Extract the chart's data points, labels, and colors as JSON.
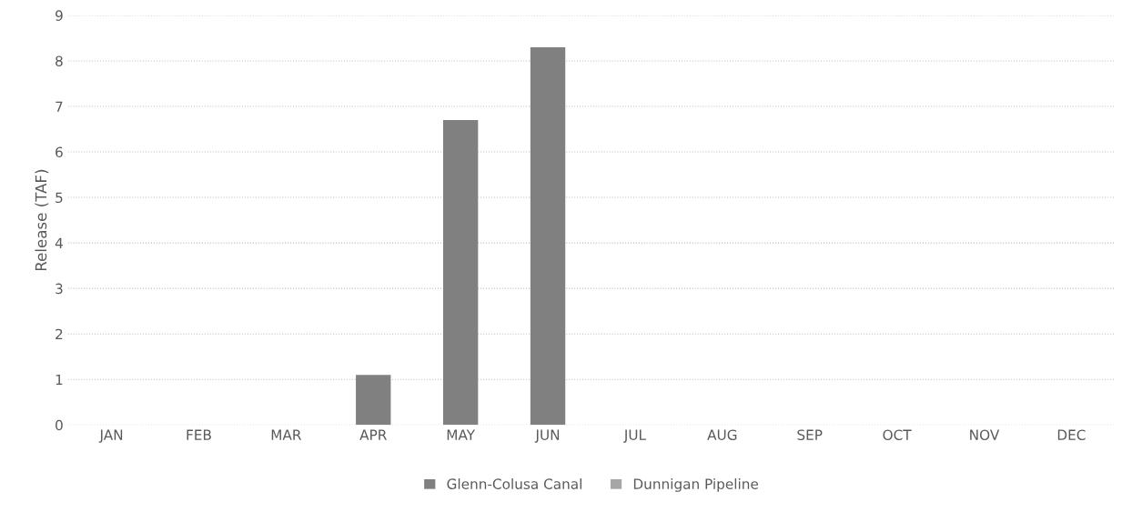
{
  "chart_data": {
    "type": "bar",
    "ylabel": "Release (TAF)",
    "categories": [
      "JAN",
      "FEB",
      "MAR",
      "APR",
      "MAY",
      "JUN",
      "JUL",
      "AUG",
      "SEP",
      "OCT",
      "NOV",
      "DEC"
    ],
    "series": [
      {
        "name": "Glenn-Colusa Canal",
        "color": "#808080",
        "values": [
          0,
          0,
          0,
          1.1,
          6.7,
          8.3,
          0,
          0,
          0,
          0,
          0,
          0
        ]
      },
      {
        "name": "Dunnigan Pipeline",
        "color": "#a6a6a6",
        "values": [
          0,
          0,
          0,
          0,
          0,
          0,
          0,
          0,
          0,
          0,
          0,
          0
        ]
      }
    ],
    "ylim": [
      0,
      9
    ],
    "yticks": [
      0,
      1,
      2,
      3,
      4,
      5,
      6,
      7,
      8,
      9
    ],
    "grid": "y",
    "legend": "bottom"
  }
}
